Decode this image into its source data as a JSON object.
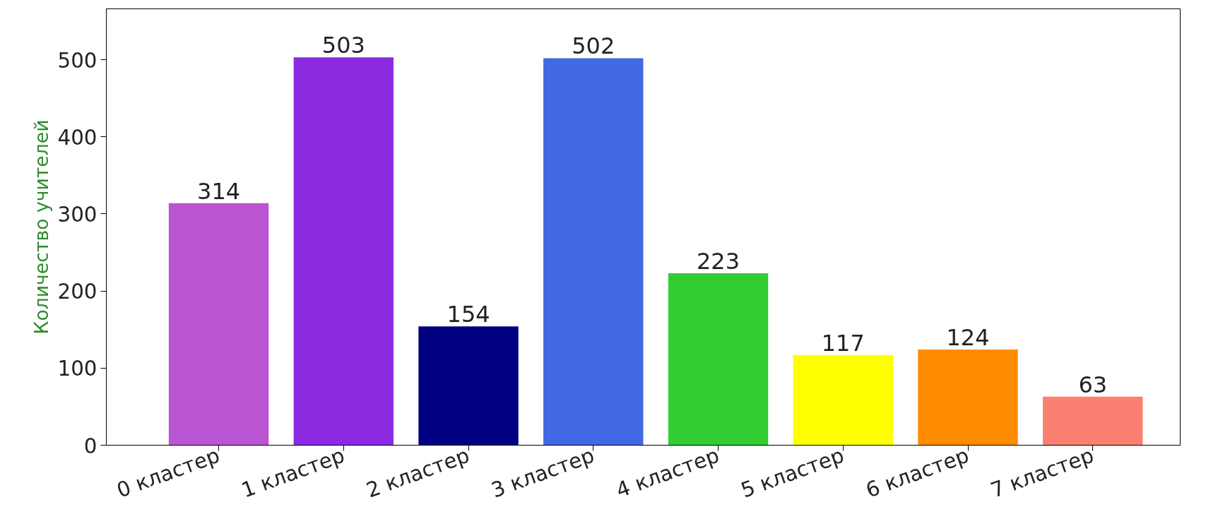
{
  "chart_data": {
    "type": "bar",
    "ylabel": "Количество учителей",
    "categories": [
      "0 кластер",
      "1 кластер",
      "2 кластер",
      "3 кластер",
      "4 кластер",
      "5 кластер",
      "6 кластер",
      "7 кластер"
    ],
    "values": [
      314,
      503,
      154,
      502,
      223,
      117,
      124,
      63
    ],
    "colors": [
      "#ba55d3",
      "#8a2be2",
      "#000080",
      "#4169e1",
      "#32cd32",
      "#ffff00",
      "#ff8c00",
      "#fa8072"
    ],
    "ylim": [
      0,
      566
    ],
    "yticks": [
      0,
      100,
      200,
      300,
      400,
      500
    ],
    "data_labels": true,
    "grid": false
  }
}
